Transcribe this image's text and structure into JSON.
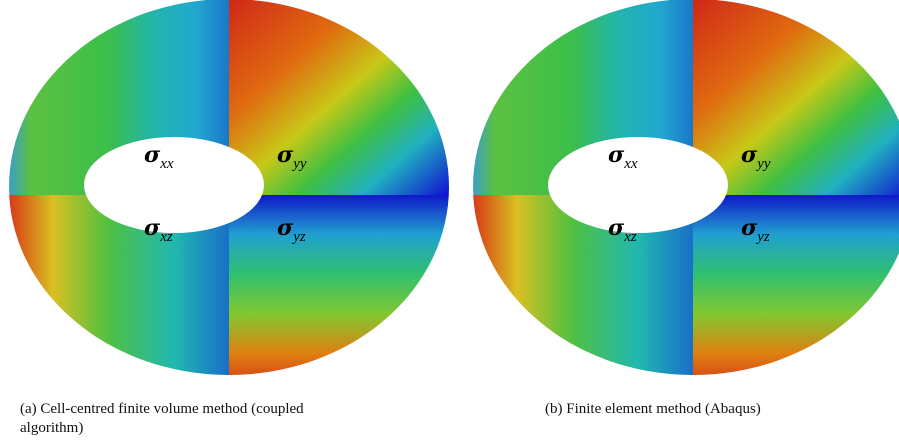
{
  "panels": [
    {
      "labels": [
        {
          "symbol": "σ",
          "subscript": "xx"
        },
        {
          "symbol": "σ",
          "subscript": "yy"
        },
        {
          "symbol": "σ",
          "subscript": "xz"
        },
        {
          "symbol": "σ",
          "subscript": "yz"
        }
      ],
      "caption": "(a) Cell-centred finite volume method (coupled algorithm)"
    },
    {
      "labels": [
        {
          "symbol": "σ",
          "subscript": "xx"
        },
        {
          "symbol": "σ",
          "subscript": "yy"
        },
        {
          "symbol": "σ",
          "subscript": "xz"
        },
        {
          "symbol": "σ",
          "subscript": "yz"
        }
      ],
      "caption": "(b) Finite element method (Abaqus)"
    }
  ]
}
